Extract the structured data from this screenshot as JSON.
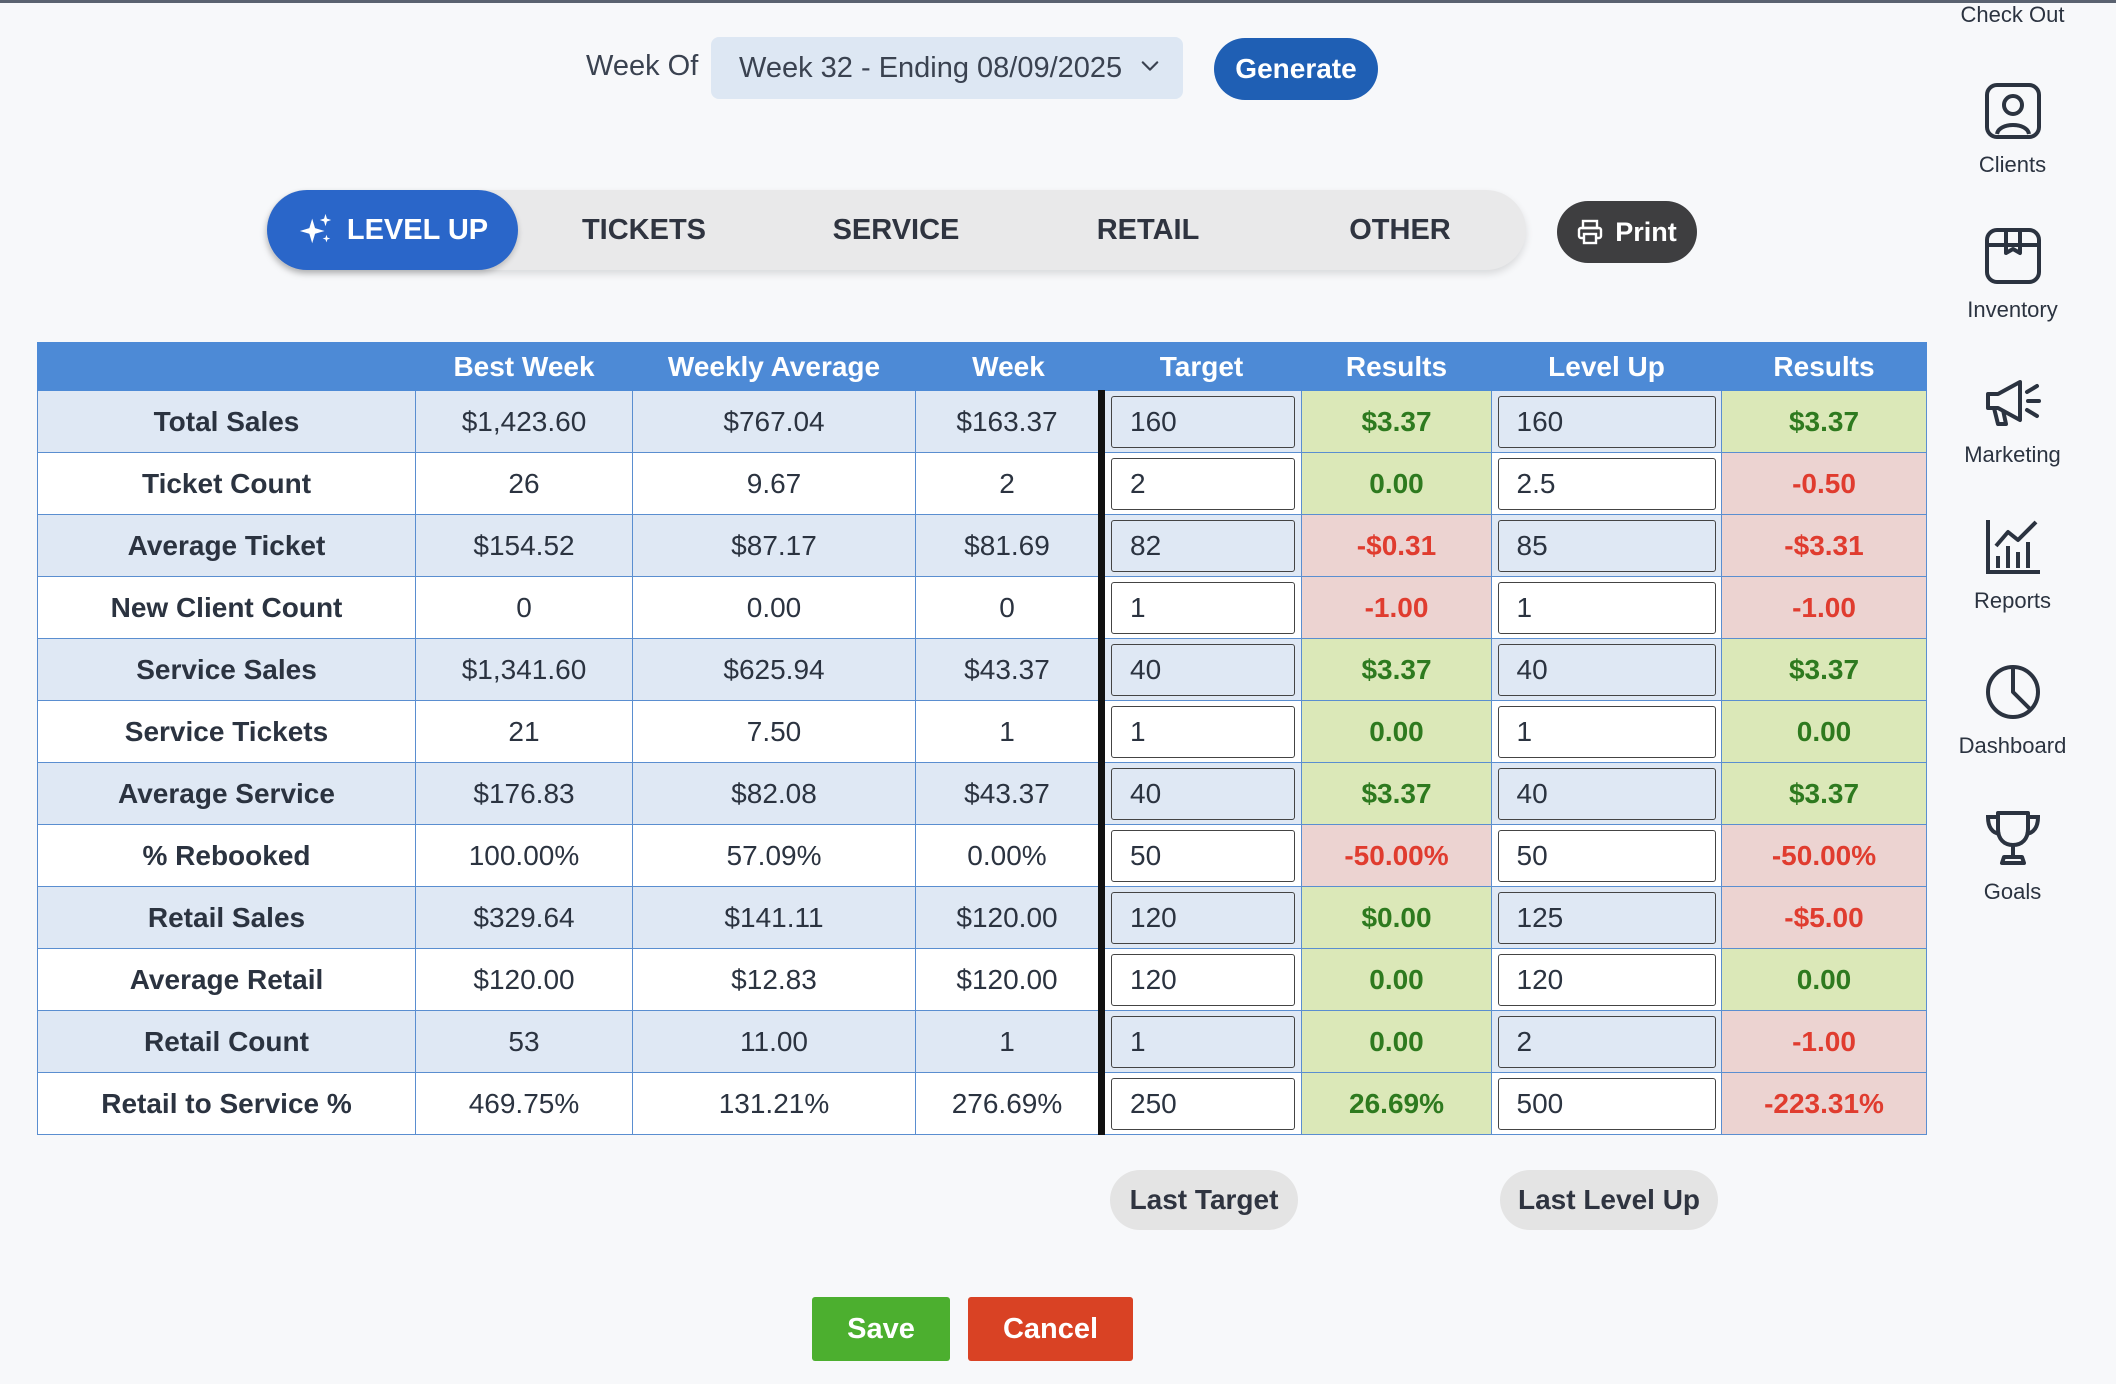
{
  "header": {
    "week_label": "Week Of",
    "week_value": "Week 32 - Ending 08/09/2025",
    "generate_label": "Generate"
  },
  "tabs": [
    {
      "label": "LEVEL UP",
      "active": true
    },
    {
      "label": "TICKETS",
      "active": false
    },
    {
      "label": "SERVICE",
      "active": false
    },
    {
      "label": "RETAIL",
      "active": false
    },
    {
      "label": "OTHER",
      "active": false
    }
  ],
  "print_label": "Print",
  "table": {
    "columns": [
      "",
      "Best Week",
      "Weekly Average",
      "Week",
      "Target",
      "Results",
      "Level Up",
      "Results"
    ],
    "rows": [
      {
        "label": "Total Sales",
        "best": "$1,423.60",
        "avg": "$767.04",
        "week": "$163.37",
        "target": "160",
        "target_result": "$3.37",
        "target_status": "pos",
        "levelup": "160",
        "levelup_result": "$3.37",
        "levelup_status": "pos"
      },
      {
        "label": "Ticket Count",
        "best": "26",
        "avg": "9.67",
        "week": "2",
        "target": "2",
        "target_result": "0.00",
        "target_status": "pos",
        "levelup": "2.5",
        "levelup_result": "-0.50",
        "levelup_status": "neg"
      },
      {
        "label": "Average Ticket",
        "best": "$154.52",
        "avg": "$87.17",
        "week": "$81.69",
        "target": "82",
        "target_result": "-$0.31",
        "target_status": "neg",
        "levelup": "85",
        "levelup_result": "-$3.31",
        "levelup_status": "neg"
      },
      {
        "label": "New Client Count",
        "best": "0",
        "avg": "0.00",
        "week": "0",
        "target": "1",
        "target_result": "-1.00",
        "target_status": "neg",
        "levelup": "1",
        "levelup_result": "-1.00",
        "levelup_status": "neg"
      },
      {
        "label": "Service Sales",
        "best": "$1,341.60",
        "avg": "$625.94",
        "week": "$43.37",
        "target": "40",
        "target_result": "$3.37",
        "target_status": "pos",
        "levelup": "40",
        "levelup_result": "$3.37",
        "levelup_status": "pos"
      },
      {
        "label": "Service Tickets",
        "best": "21",
        "avg": "7.50",
        "week": "1",
        "target": "1",
        "target_result": "0.00",
        "target_status": "pos",
        "levelup": "1",
        "levelup_result": "0.00",
        "levelup_status": "pos"
      },
      {
        "label": "Average Service",
        "best": "$176.83",
        "avg": "$82.08",
        "week": "$43.37",
        "target": "40",
        "target_result": "$3.37",
        "target_status": "pos",
        "levelup": "40",
        "levelup_result": "$3.37",
        "levelup_status": "pos"
      },
      {
        "label": "% Rebooked",
        "best": "100.00%",
        "avg": "57.09%",
        "week": "0.00%",
        "target": "50",
        "target_result": "-50.00%",
        "target_status": "neg",
        "levelup": "50",
        "levelup_result": "-50.00%",
        "levelup_status": "neg"
      },
      {
        "label": "Retail Sales",
        "best": "$329.64",
        "avg": "$141.11",
        "week": "$120.00",
        "target": "120",
        "target_result": "$0.00",
        "target_status": "pos",
        "levelup": "125",
        "levelup_result": "-$5.00",
        "levelup_status": "neg"
      },
      {
        "label": "Average Retail",
        "best": "$120.00",
        "avg": "$12.83",
        "week": "$120.00",
        "target": "120",
        "target_result": "0.00",
        "target_status": "pos",
        "levelup": "120",
        "levelup_result": "0.00",
        "levelup_status": "pos"
      },
      {
        "label": "Retail Count",
        "best": "53",
        "avg": "11.00",
        "week": "1",
        "target": "1",
        "target_result": "0.00",
        "target_status": "pos",
        "levelup": "2",
        "levelup_result": "-1.00",
        "levelup_status": "neg"
      },
      {
        "label": "Retail to Service %",
        "best": "469.75%",
        "avg": "131.21%",
        "week": "276.69%",
        "target": "250",
        "target_result": "26.69%",
        "target_status": "pos",
        "levelup": "500",
        "levelup_result": "-223.31%",
        "levelup_status": "neg"
      }
    ]
  },
  "last_target_label": "Last Target",
  "last_levelup_label": "Last Level Up",
  "save_label": "Save",
  "cancel_label": "Cancel",
  "sidebar": {
    "checkout_label": "Check Out",
    "items": [
      {
        "label": "Clients",
        "icon": "clients-icon"
      },
      {
        "label": "Inventory",
        "icon": "inventory-icon"
      },
      {
        "label": "Marketing",
        "icon": "marketing-icon"
      },
      {
        "label": "Reports",
        "icon": "reports-icon"
      },
      {
        "label": "Dashboard",
        "icon": "dashboard-icon"
      },
      {
        "label": "Goals",
        "icon": "goals-icon"
      }
    ]
  },
  "colors": {
    "primary": "#1f5fb4",
    "active_tab": "#2a66c9",
    "header_blue": "#4d8ad6",
    "positive_bg": "#dbe8b8",
    "positive_text": "#2e7a1f",
    "negative_bg": "#ecd3d1",
    "negative_text": "#e03c2f",
    "save": "#4caf2f",
    "cancel": "#d94224"
  }
}
